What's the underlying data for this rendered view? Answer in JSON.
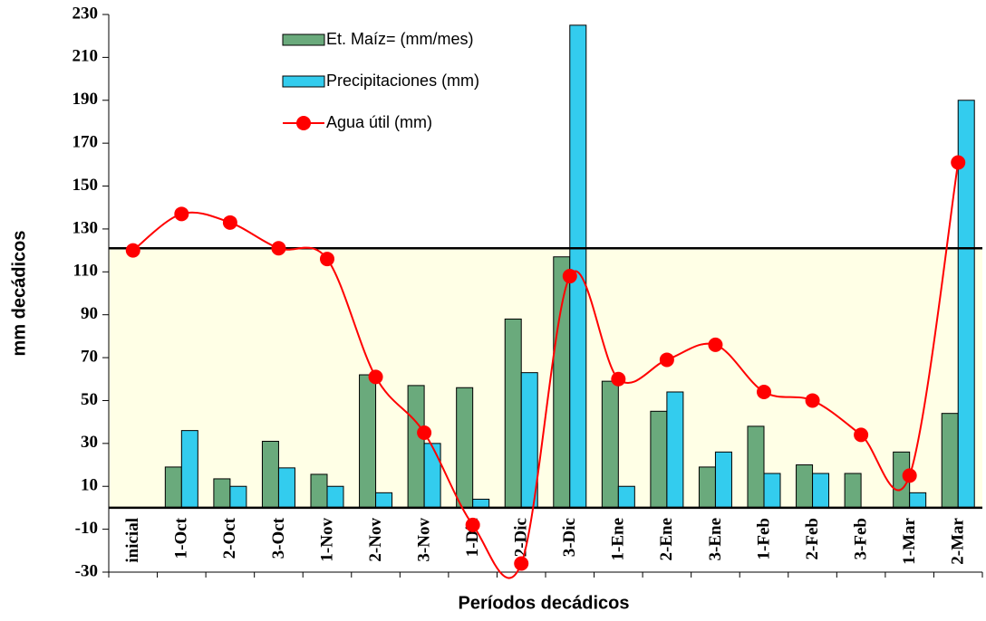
{
  "chart_data": {
    "type": "bar_line",
    "x_label": "Períodos decádicos",
    "y_label": "mm decádicos",
    "categories": [
      "inicial",
      "1-Oct",
      "2-Oct",
      "3-Oct",
      "1-Nov",
      "2-Nov",
      "3-Nov",
      "1-Dic",
      "2-Dic",
      "3-Dic",
      "1-Ene",
      "2-Ene",
      "3-Ene",
      "1-Feb",
      "2-Feb",
      "3-Feb",
      "1-Mar",
      "2-Mar"
    ],
    "series": [
      {
        "name": "Et. Maíz= (mm/mes)",
        "kind": "bar",
        "color": "#6aaa7c",
        "values": [
          null,
          19,
          13.5,
          31,
          15.6,
          62,
          57,
          56,
          88,
          117,
          59,
          45,
          19,
          38,
          20,
          16,
          26,
          44
        ]
      },
      {
        "name": "Precipitaciones (mm)",
        "kind": "bar",
        "color": "#33ccee",
        "values": [
          null,
          36,
          10,
          18.6,
          10,
          7,
          30,
          4,
          63,
          225,
          10,
          54,
          26,
          16,
          16,
          null,
          7,
          190
        ]
      },
      {
        "name": "Agua útil (mm)",
        "kind": "line",
        "color": "#ff0000",
        "values": [
          120,
          137,
          133,
          121,
          116,
          61,
          35,
          -8,
          -26,
          108,
          60,
          69,
          76,
          54,
          50,
          34,
          15,
          161
        ]
      }
    ],
    "reference_line": 121,
    "ylim": [
      -30,
      230
    ],
    "yticks": [
      -30,
      -10,
      10,
      30,
      50,
      70,
      90,
      110,
      130,
      150,
      170,
      190,
      210,
      230
    ]
  }
}
